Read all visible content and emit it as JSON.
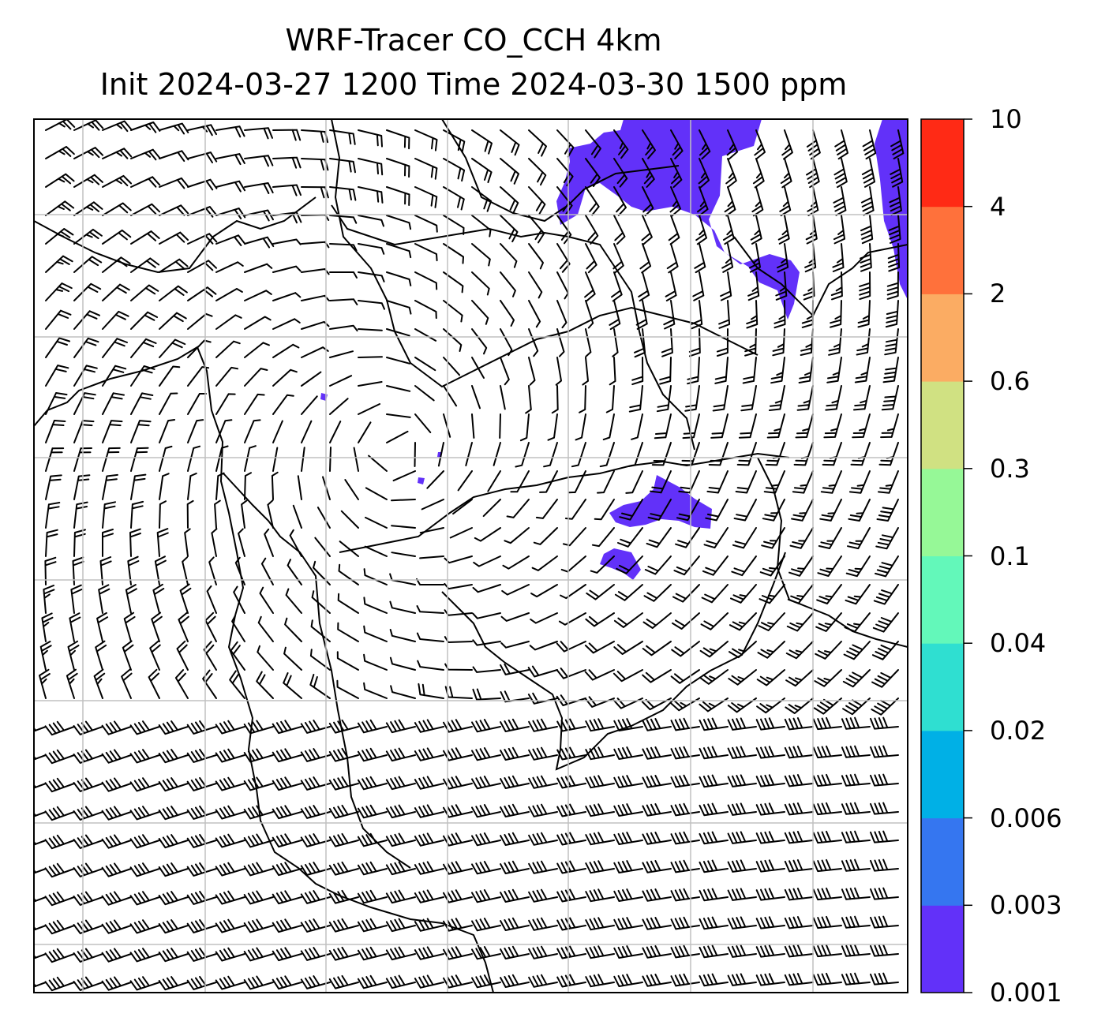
{
  "title_line1": "WRF-Tracer CO_CCH 4km",
  "title_line2": "Init 2024-03-27 1200 Time 2024-03-30 1500 ppm",
  "colorbar": {
    "levels": [
      "0.001",
      "0.003",
      "0.006",
      "0.02",
      "0.04",
      "0.1",
      "0.3",
      "0.6",
      "2",
      "4",
      "10"
    ],
    "colors": [
      "#6231f9",
      "#3576f0",
      "#00b0e6",
      "#2fdfd1",
      "#63f8ba",
      "#96f897",
      "#d0e182",
      "#fbac63",
      "#ff713b",
      "#ff2a15"
    ]
  },
  "map": {
    "layers": [
      "co-tracer-concentration",
      "wind-barbs",
      "coastlines",
      "lat-lon-grid"
    ],
    "grid_color": "#c0c0c0"
  }
}
